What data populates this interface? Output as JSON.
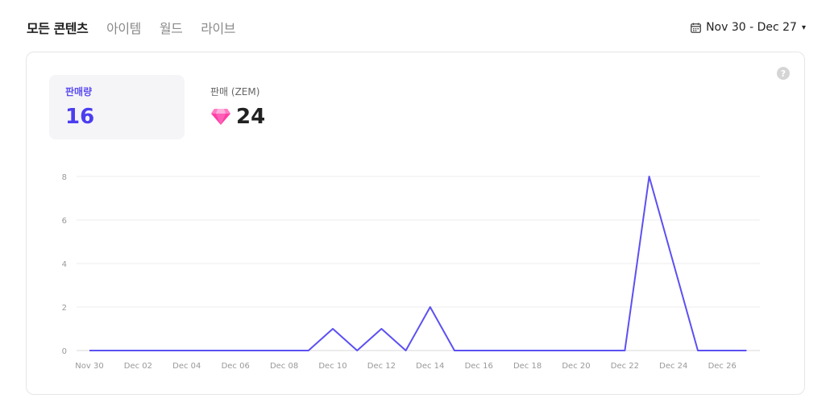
{
  "tabs": [
    {
      "label": "모든 콘텐츠",
      "active": true
    },
    {
      "label": "아이템",
      "active": false
    },
    {
      "label": "월드",
      "active": false
    },
    {
      "label": "라이브",
      "active": false
    }
  ],
  "date_range": {
    "label": "Nov 30 - Dec 27",
    "icon": "calendar-icon",
    "caret": "▾"
  },
  "help_icon": "?",
  "metrics": [
    {
      "label": "판매량",
      "value": "16"
    },
    {
      "label": "판매 (ZEM)",
      "value": "24",
      "icon": "gem-icon"
    }
  ],
  "colors": {
    "accent": "#5b4cf0",
    "line": "#5c50f2",
    "grid": "#ececec",
    "gem": "#ff3fa7"
  },
  "chart_data": {
    "type": "line",
    "x": [
      "Nov 30",
      "Dec 01",
      "Dec 02",
      "Dec 03",
      "Dec 04",
      "Dec 05",
      "Dec 06",
      "Dec 07",
      "Dec 08",
      "Dec 09",
      "Dec 10",
      "Dec 11",
      "Dec 12",
      "Dec 13",
      "Dec 14",
      "Dec 15",
      "Dec 16",
      "Dec 17",
      "Dec 18",
      "Dec 19",
      "Dec 20",
      "Dec 21",
      "Dec 22",
      "Dec 23",
      "Dec 24",
      "Dec 25",
      "Dec 26",
      "Dec 27"
    ],
    "x_tick_labels": [
      "Nov 30",
      "Dec 02",
      "Dec 04",
      "Dec 06",
      "Dec 08",
      "Dec 10",
      "Dec 12",
      "Dec 14",
      "Dec 16",
      "Dec 18",
      "Dec 20",
      "Dec 22",
      "Dec 24",
      "Dec 26"
    ],
    "series": [
      {
        "values": [
          0,
          0,
          0,
          0,
          0,
          0,
          0,
          0,
          0,
          0,
          1,
          0,
          1,
          0,
          2,
          0,
          0,
          0,
          0,
          0,
          0,
          0,
          0,
          8,
          4,
          0,
          0,
          0
        ]
      }
    ],
    "y_ticks": [
      0,
      2,
      4,
      6,
      8
    ],
    "ylim": [
      0,
      8
    ],
    "grid": true
  }
}
